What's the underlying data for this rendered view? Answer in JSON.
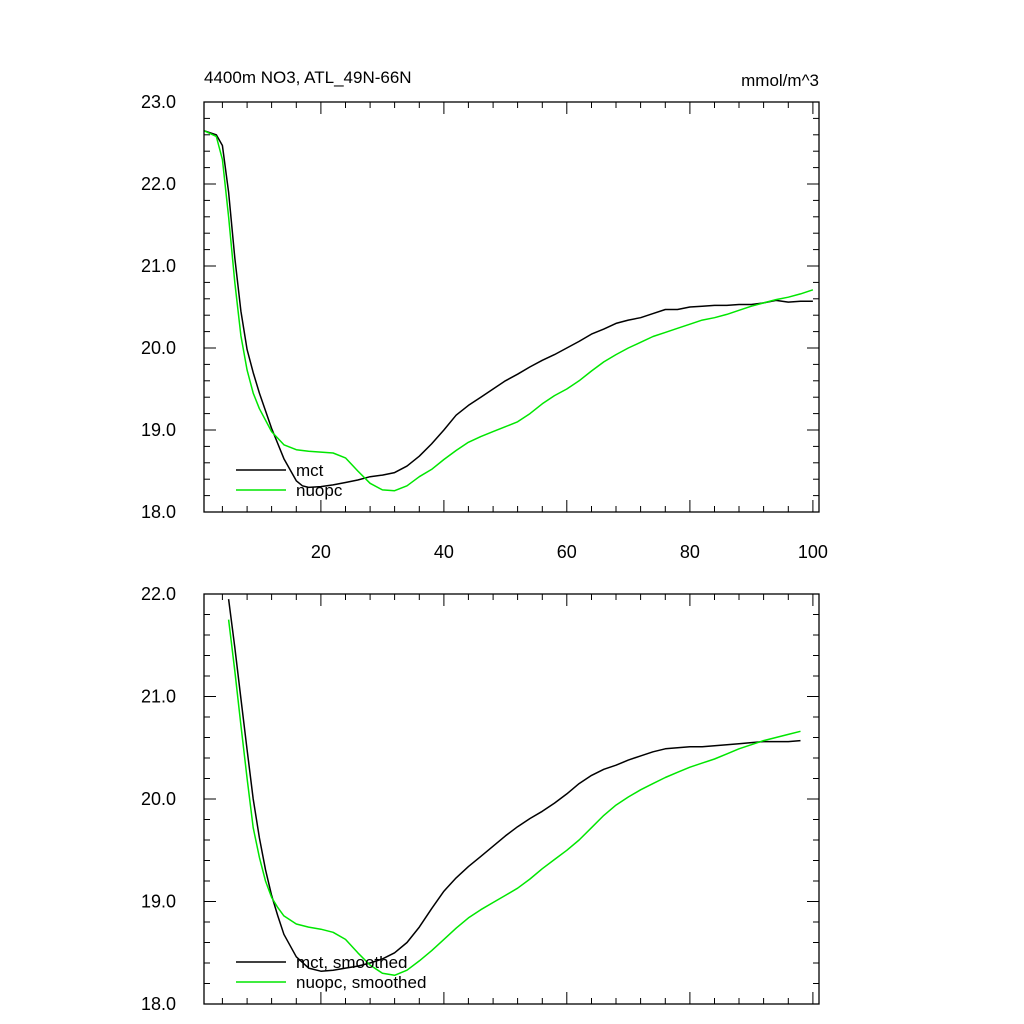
{
  "chart_data": [
    {
      "type": "line",
      "title": "4400m NO3, ATL_49N-66N",
      "units": "mmol/m^3",
      "xlim": [
        1,
        101
      ],
      "ylim": [
        18.0,
        23.0
      ],
      "xticks": [
        20,
        40,
        60,
        80,
        100
      ],
      "xtick_labels": [
        "20",
        "40",
        "60",
        "80",
        "100"
      ],
      "yticks": [
        18.0,
        19.0,
        20.0,
        21.0,
        22.0,
        23.0
      ],
      "ytick_labels": [
        "18.0",
        "19.0",
        "20.0",
        "21.0",
        "22.0",
        "23.0"
      ],
      "legend_position": "bottom-left",
      "series": [
        {
          "name": "mct",
          "color": "#000000",
          "x": [
            1,
            3,
            4,
            5,
            6,
            7,
            8,
            9,
            10,
            12,
            14,
            16,
            17,
            18,
            20,
            22,
            24,
            26,
            28,
            30,
            32,
            34,
            36,
            38,
            40,
            42,
            44,
            46,
            48,
            50,
            52,
            54,
            56,
            58,
            60,
            62,
            64,
            66,
            68,
            70,
            72,
            74,
            76,
            78,
            80,
            82,
            84,
            86,
            88,
            90,
            92,
            94,
            96,
            98,
            100
          ],
          "values": [
            22.65,
            22.6,
            22.47,
            21.9,
            21.1,
            20.45,
            19.98,
            19.7,
            19.45,
            19.02,
            18.65,
            18.38,
            18.32,
            18.3,
            18.31,
            18.33,
            18.36,
            18.39,
            18.43,
            18.45,
            18.48,
            18.56,
            18.68,
            18.83,
            19.0,
            19.18,
            19.3,
            19.4,
            19.5,
            19.6,
            19.68,
            19.77,
            19.85,
            19.92,
            20.0,
            20.08,
            20.17,
            20.23,
            20.3,
            20.34,
            20.37,
            20.42,
            20.47,
            20.47,
            20.5,
            20.51,
            20.52,
            20.52,
            20.53,
            20.53,
            20.55,
            20.58,
            20.56,
            20.57,
            20.57
          ]
        },
        {
          "name": "nuopc",
          "color": "#00e600",
          "x": [
            1,
            3,
            4,
            5,
            6,
            7,
            8,
            9,
            10,
            12,
            14,
            16,
            18,
            20,
            22,
            24,
            26,
            28,
            30,
            32,
            34,
            36,
            38,
            40,
            42,
            44,
            46,
            48,
            50,
            52,
            54,
            56,
            58,
            60,
            62,
            64,
            66,
            68,
            70,
            72,
            74,
            76,
            78,
            80,
            82,
            84,
            86,
            88,
            90,
            92,
            94,
            96,
            98,
            100
          ],
          "values": [
            22.65,
            22.58,
            22.3,
            21.6,
            20.8,
            20.15,
            19.73,
            19.45,
            19.26,
            18.98,
            18.82,
            18.76,
            18.74,
            18.73,
            18.72,
            18.66,
            18.5,
            18.35,
            18.27,
            18.26,
            18.32,
            18.43,
            18.52,
            18.64,
            18.75,
            18.85,
            18.92,
            18.98,
            19.04,
            19.1,
            19.2,
            19.32,
            19.42,
            19.5,
            19.6,
            19.72,
            19.83,
            19.92,
            20.0,
            20.07,
            20.14,
            20.19,
            20.24,
            20.29,
            20.34,
            20.37,
            20.41,
            20.46,
            20.51,
            20.55,
            20.59,
            20.62,
            20.66,
            20.71
          ]
        }
      ]
    },
    {
      "type": "line",
      "xlim": [
        1,
        101
      ],
      "ylim": [
        18.0,
        22.0
      ],
      "xticks": [
        20,
        40,
        60,
        80,
        100
      ],
      "yticks": [
        18.0,
        19.0,
        20.0,
        21.0,
        22.0
      ],
      "ytick_labels": [
        "18.0",
        "19.0",
        "20.0",
        "21.0",
        "22.0"
      ],
      "legend_position": "bottom-left",
      "series": [
        {
          "name": "mct, smoothed",
          "color": "#000000",
          "x": [
            5,
            6,
            7,
            8,
            9,
            10,
            11,
            12,
            13,
            14,
            16,
            18,
            20,
            22,
            24,
            26,
            28,
            30,
            32,
            34,
            36,
            38,
            40,
            42,
            44,
            46,
            48,
            50,
            52,
            54,
            56,
            58,
            60,
            62,
            64,
            66,
            68,
            70,
            72,
            74,
            76,
            78,
            80,
            82,
            84,
            86,
            88,
            90,
            92,
            94,
            96,
            98
          ],
          "values": [
            21.95,
            21.48,
            20.98,
            20.48,
            20.0,
            19.62,
            19.31,
            19.06,
            18.86,
            18.68,
            18.46,
            18.35,
            18.32,
            18.33,
            18.35,
            18.37,
            18.4,
            18.44,
            18.5,
            18.6,
            18.75,
            18.93,
            19.1,
            19.23,
            19.34,
            19.44,
            19.54,
            19.64,
            19.73,
            19.81,
            19.88,
            19.96,
            20.05,
            20.15,
            20.23,
            20.29,
            20.33,
            20.38,
            20.42,
            20.46,
            20.49,
            20.5,
            20.51,
            20.51,
            20.52,
            20.53,
            20.54,
            20.55,
            20.56,
            20.56,
            20.56,
            20.57
          ]
        },
        {
          "name": "nuopc, smoothed",
          "color": "#00e600",
          "x": [
            5,
            6,
            7,
            8,
            9,
            10,
            11,
            12,
            13,
            14,
            16,
            18,
            20,
            22,
            24,
            26,
            28,
            30,
            32,
            34,
            36,
            38,
            40,
            42,
            44,
            46,
            48,
            50,
            52,
            54,
            56,
            58,
            60,
            62,
            64,
            66,
            68,
            70,
            72,
            74,
            76,
            78,
            80,
            82,
            84,
            86,
            88,
            90,
            92,
            94,
            96,
            98
          ],
          "values": [
            21.75,
            21.25,
            20.72,
            20.2,
            19.72,
            19.43,
            19.2,
            19.04,
            18.94,
            18.86,
            18.78,
            18.75,
            18.73,
            18.7,
            18.63,
            18.5,
            18.38,
            18.3,
            18.28,
            18.33,
            18.42,
            18.52,
            18.63,
            18.74,
            18.84,
            18.92,
            18.99,
            19.06,
            19.13,
            19.22,
            19.32,
            19.41,
            19.5,
            19.6,
            19.72,
            19.84,
            19.94,
            20.02,
            20.09,
            20.15,
            20.21,
            20.26,
            20.31,
            20.35,
            20.39,
            20.44,
            20.49,
            20.53,
            20.57,
            20.6,
            20.63,
            20.66
          ]
        }
      ]
    }
  ]
}
